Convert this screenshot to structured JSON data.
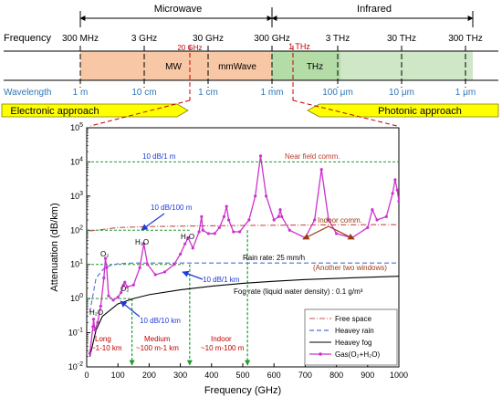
{
  "spectrum": {
    "microwave_label": "Microwave",
    "infrared_label": "Infrared",
    "frequency_label": "Frequency",
    "wavelength_label": "Wavelength",
    "freq_ticks": [
      "300 MHz",
      "3 GHz",
      "30 GHz",
      "300 GHz",
      "3 THz",
      "30 THz",
      "300 THz"
    ],
    "marker_20ghz": "20 GHz",
    "marker_1thz": "1 THz",
    "band_mw": "MW",
    "band_mmwave": "mmWave",
    "band_thz": "THz",
    "wavelength_ticks": [
      "1 m",
      "10 cm",
      "1 cm",
      "1 mm",
      "100 μm",
      "10 μm",
      "1 μm"
    ],
    "electronic_approach": "Electronic approach",
    "photonic_approach": "Photonic approach",
    "colors": {
      "mw": "#f8c7a5",
      "thz": "#b4dca7",
      "arrow": "#ffff00",
      "wavelength_text": "#2e75b6",
      "marker": "#c00000"
    }
  },
  "chart_data": {
    "type": "line",
    "xlabel": "Frequency (GHz)",
    "ylabel": "Attenuation (dB/km)",
    "xlim": [
      0,
      1000
    ],
    "ylim": [
      0.01,
      100000
    ],
    "yscale": "log",
    "x_ticks": [
      "0",
      "100",
      "200",
      "300",
      "400",
      "500",
      "600",
      "700",
      "800",
      "900",
      "1000"
    ],
    "y_ticks": [
      "10^-2",
      "10^-1",
      "10^0",
      "10^1",
      "10^2",
      "10^3",
      "10^4",
      "10^5"
    ],
    "legend_position": "bottom-right",
    "series": [
      {
        "name": "Free space",
        "style": "dash-dot",
        "color": "#c0504d",
        "x": [
          10,
          100,
          200,
          300,
          400,
          500,
          600,
          700,
          800,
          900,
          1000
        ],
        "values": [
          95,
          120,
          128,
          132,
          135,
          138,
          140,
          142,
          144,
          145,
          146
        ]
      },
      {
        "name": "Heavey rain",
        "style": "dashed",
        "color": "#4f6fd0",
        "x": [
          10,
          30,
          60,
          100,
          150,
          200,
          300,
          400,
          500,
          600,
          700,
          800,
          900,
          1000
        ],
        "values": [
          0.4,
          4,
          8.5,
          10.5,
          11,
          11,
          11,
          11,
          11,
          11,
          11,
          11,
          11,
          11
        ]
      },
      {
        "name": "Heavey fog",
        "style": "solid",
        "color": "#000000",
        "x": [
          10,
          30,
          50,
          100,
          150,
          200,
          300,
          400,
          500,
          600,
          700,
          800,
          900,
          1000
        ],
        "values": [
          0.02,
          0.12,
          0.3,
          0.7,
          1.0,
          1.3,
          1.8,
          2.3,
          2.8,
          3.2,
          3.6,
          3.9,
          4.2,
          4.5
        ]
      },
      {
        "name": "Gas(O₂+H₂O)",
        "style": "solid-markers",
        "color": "#cc33cc",
        "x": [
          10,
          20,
          22,
          26,
          35,
          45,
          55,
          60,
          64,
          70,
          85,
          100,
          110,
          118,
          122,
          130,
          150,
          170,
          183,
          195,
          220,
          250,
          280,
          300,
          315,
          325,
          340,
          360,
          368,
          372,
          390,
          410,
          425,
          440,
          448,
          455,
          470,
          490,
          520,
          540,
          557,
          575,
          600,
          615,
          620,
          625,
          650,
          700,
          730,
          752,
          775,
          800,
          850,
          900,
          915,
          930,
          960,
          980,
          988,
          995,
          1000
        ],
        "values": [
          0.025,
          0.15,
          0.25,
          0.12,
          0.2,
          0.6,
          4,
          15,
          8,
          1.2,
          0.9,
          1.1,
          1.5,
          2.5,
          3,
          2.2,
          2.5,
          8,
          40,
          10,
          5,
          6,
          10,
          20,
          40,
          60,
          30,
          90,
          250,
          100,
          80,
          80,
          120,
          250,
          500,
          200,
          90,
          90,
          200,
          1000,
          15000,
          1000,
          200,
          250,
          400,
          250,
          100,
          60,
          200,
          6000,
          200,
          80,
          60,
          120,
          400,
          200,
          250,
          1200,
          3000,
          1500,
          700
        ]
      }
    ],
    "annotations": [
      "10 dB/1 m",
      "Near field comm.",
      "10 dB/100 m",
      "Rain rate: 25 mm/h",
      "10 dB/1 km",
      "10 dB/10 km",
      "Indoor comm.",
      "(Another two windows)",
      "Fog rate (liquid water density) : 0.1 g/m³",
      "O₂",
      "O₂",
      "H₂O",
      "H₂O",
      "H₂O",
      "Long",
      "~1-10 km",
      "Medium",
      "~100 m-1 km",
      "Indoor",
      "~10 m-100 m"
    ],
    "reference_lines_db_per_km": [
      10000,
      100,
      10,
      1
    ],
    "window_cutoffs_ghz": [
      145,
      330,
      515
    ]
  }
}
